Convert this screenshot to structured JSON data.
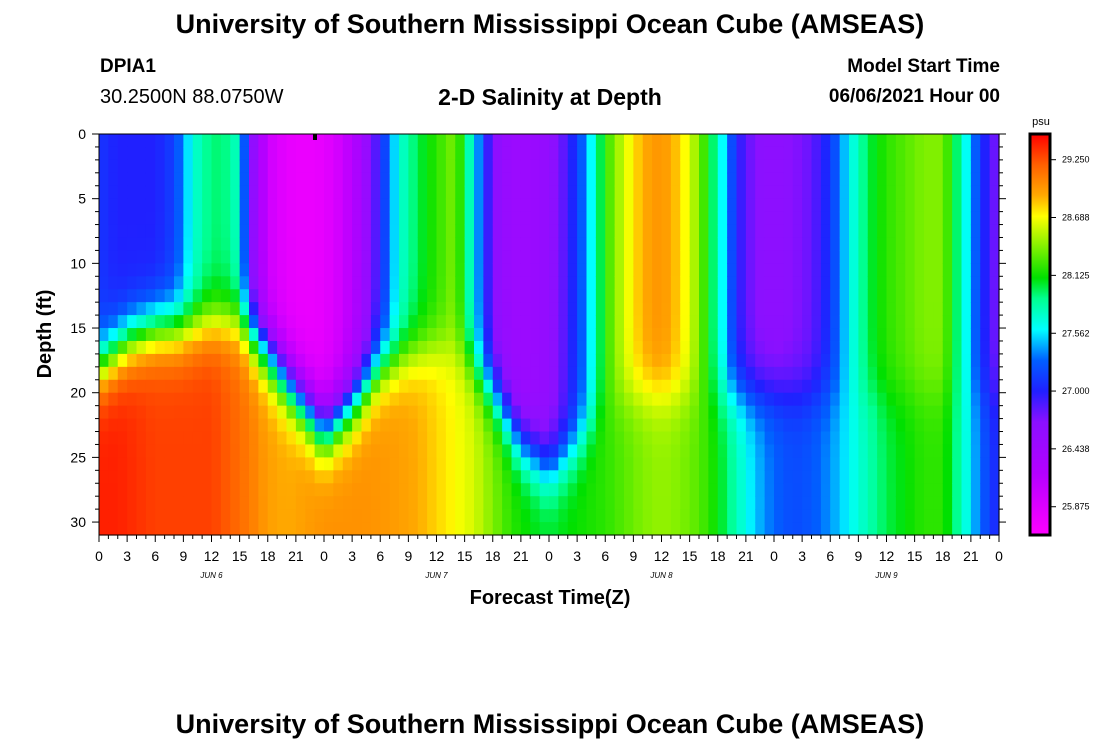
{
  "header": {
    "title": "University of Southern Mississippi Ocean Cube (AMSEAS)",
    "station_id": "DPIA1",
    "coordinates": "30.2500N  88.0750W",
    "model_start_label": "Model Start Time",
    "model_start_value": "06/06/2021 Hour 00"
  },
  "footer": {
    "title": "University of Southern Mississippi Ocean Cube (AMSEAS)"
  },
  "chart_data": {
    "type": "heatmap",
    "title": "2-D Salinity at Depth",
    "xlabel": "Forecast Time(Z)",
    "ylabel": "Depth (ft)",
    "x_unit": "hours",
    "xlim": [
      0,
      96
    ],
    "ylim": [
      0,
      31
    ],
    "x_tick_labels": [
      "0",
      "3",
      "6",
      "9",
      "12",
      "15",
      "18",
      "21",
      "0",
      "3",
      "6",
      "9",
      "12",
      "15",
      "18",
      "21",
      "0",
      "3",
      "6",
      "9",
      "12",
      "15",
      "18",
      "21",
      "0",
      "3",
      "6",
      "9",
      "12",
      "15",
      "18",
      "21",
      "0"
    ],
    "y_ticks": [
      0,
      5,
      10,
      15,
      20,
      25,
      30
    ],
    "day_labels": [
      {
        "label": "JUN 6",
        "hour": 12
      },
      {
        "label": "JUN 7",
        "hour": 36
      },
      {
        "label": "JUN 8",
        "hour": 60
      },
      {
        "label": "JUN 9",
        "hour": 84
      }
    ],
    "colorbar": {
      "unit": "psu",
      "min": 25.6,
      "max": 29.5,
      "tick_values": [
        "29.250",
        "28.688",
        "28.125",
        "27.562",
        "27.000",
        "26.438",
        "25.875"
      ]
    },
    "color_stops": [
      {
        "value": 25.6,
        "color": "#ff00ff"
      },
      {
        "value": 26.2,
        "color": "#b400ff"
      },
      {
        "value": 26.7,
        "color": "#8a10ff"
      },
      {
        "value": 27.0,
        "color": "#2020ff"
      },
      {
        "value": 27.3,
        "color": "#0060ff"
      },
      {
        "value": 27.6,
        "color": "#00ffff"
      },
      {
        "value": 27.9,
        "color": "#00ff90"
      },
      {
        "value": 28.1,
        "color": "#00e000"
      },
      {
        "value": 28.4,
        "color": "#80f000"
      },
      {
        "value": 28.7,
        "color": "#ffff00"
      },
      {
        "value": 28.9,
        "color": "#ffaa00"
      },
      {
        "value": 29.2,
        "color": "#ff6000"
      },
      {
        "value": 29.5,
        "color": "#ff0000"
      }
    ],
    "surface_salinity_series": {
      "hours": [
        0,
        2,
        4,
        6,
        8,
        9,
        10,
        12,
        14,
        15,
        16,
        18,
        20,
        22,
        24,
        26,
        28,
        30,
        32,
        34,
        36,
        38,
        40,
        42,
        44,
        46,
        48,
        50,
        52,
        54,
        56,
        58,
        60,
        62,
        64,
        66,
        68,
        70,
        72,
        74,
        76,
        78,
        80,
        82,
        84,
        86,
        88,
        90,
        92,
        94,
        96
      ],
      "values": [
        27.1,
        27.0,
        27.0,
        27.0,
        27.15,
        27.4,
        27.7,
        27.95,
        27.9,
        27.7,
        26.8,
        26.0,
        25.8,
        25.75,
        25.8,
        26.0,
        26.4,
        27.0,
        27.7,
        28.0,
        28.2,
        28.4,
        27.6,
        26.7,
        26.5,
        26.5,
        26.6,
        26.9,
        27.4,
        28.2,
        28.6,
        28.9,
        29.0,
        28.8,
        28.4,
        27.8,
        27.0,
        26.7,
        26.65,
        26.7,
        26.8,
        27.1,
        27.6,
        28.0,
        28.2,
        28.3,
        28.4,
        28.4,
        27.8,
        27.1,
        26.7
      ]
    },
    "bottom_salinity_series": {
      "hours": [
        0,
        2,
        4,
        6,
        8,
        12,
        14,
        16,
        18,
        20,
        22,
        24,
        26,
        28,
        30,
        32,
        34,
        36,
        38,
        40,
        42,
        44,
        46,
        48,
        50,
        52,
        54,
        56,
        58,
        60,
        62,
        64,
        66,
        68,
        70,
        72,
        74,
        76,
        78,
        80,
        82,
        84,
        86,
        88,
        90,
        92,
        94,
        96
      ],
      "values": [
        29.4,
        29.4,
        29.35,
        29.3,
        29.3,
        29.3,
        29.2,
        29.1,
        28.95,
        28.9,
        28.95,
        29.0,
        29.0,
        29.0,
        28.98,
        28.95,
        28.9,
        28.8,
        28.7,
        28.6,
        28.4,
        28.2,
        28.1,
        28.05,
        28.1,
        28.15,
        28.2,
        28.3,
        28.4,
        28.45,
        28.4,
        28.3,
        28.1,
        27.8,
        27.5,
        27.3,
        27.2,
        27.25,
        27.4,
        27.6,
        27.8,
        28.0,
        28.1,
        28.2,
        28.2,
        27.8,
        27.3,
        27.0
      ]
    },
    "halocline_depth_series": {
      "hours": [
        0,
        3,
        6,
        9,
        12,
        15,
        18,
        21,
        24,
        27,
        30,
        33,
        36,
        39,
        42,
        45,
        48,
        51,
        54,
        57,
        60,
        63,
        66,
        69,
        72,
        75,
        78,
        81,
        84,
        87,
        90,
        93,
        96
      ],
      "depth_ft": [
        18,
        16,
        15,
        15,
        14.5,
        14.5,
        17,
        20,
        23,
        21,
        18,
        17,
        16.5,
        17,
        20,
        24,
        26,
        24,
        21,
        20,
        20,
        20,
        20,
        20,
        20,
        20,
        20,
        20,
        20,
        20,
        20,
        20,
        20
      ]
    }
  }
}
